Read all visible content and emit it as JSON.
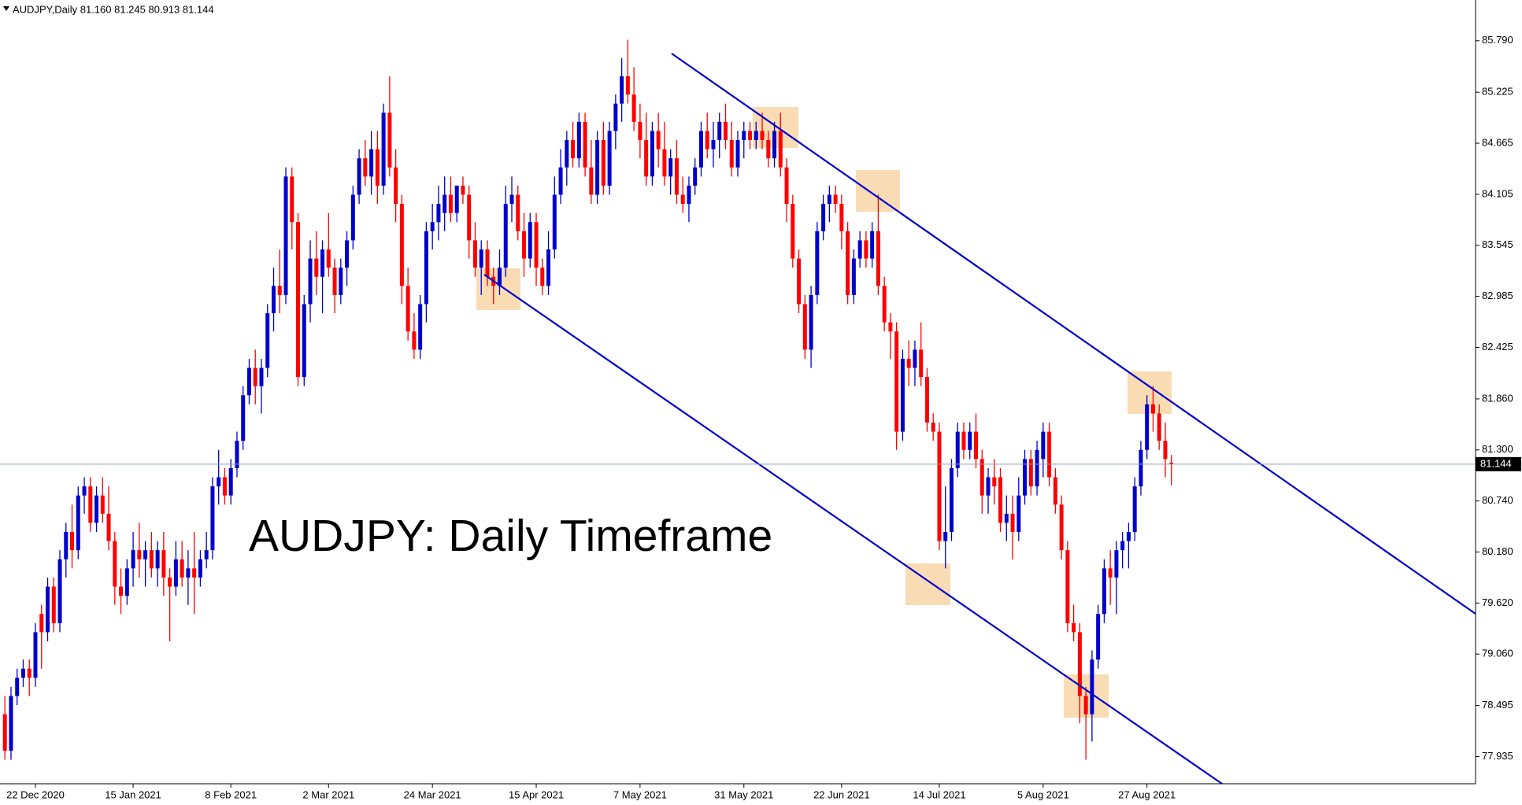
{
  "chart_data": {
    "type": "candlestick",
    "header": "AUDJPY,Daily  81.160 81.245 80.913 81.144",
    "title": "AUDJPY: Daily Timeframe",
    "up_color": "#0000cd",
    "down_color": "#ff0000",
    "last_price": 81.144,
    "xlim": [
      -0.8,
      240.8
    ],
    "ylim": [
      77.637,
      86.237
    ],
    "yticks": [
      {
        "value": 85.79,
        "label": "85.790"
      },
      85.225,
      84.665,
      84.105,
      83.545,
      82.985,
      82.425,
      {
        "value": 81.86,
        "label": "81.860"
      },
      {
        "value": 81.3,
        "label": "81.300"
      },
      {
        "value": 80.74,
        "label": "80.740"
      },
      {
        "value": 80.18,
        "label": "80.180"
      },
      {
        "value": 79.62,
        "label": "79.620"
      },
      {
        "value": 79.06,
        "label": "79.060"
      },
      78.495,
      77.935
    ],
    "xticks": [
      {
        "value": 5,
        "label": "22 Dec 2020"
      },
      {
        "value": 21,
        "label": "15 Jan 2021"
      },
      {
        "value": 37,
        "label": "8 Feb 2021"
      },
      {
        "value": 53,
        "label": "2 Mar 2021"
      },
      {
        "value": 70,
        "label": "24 Mar 2021"
      },
      {
        "value": 87,
        "label": "15 Apr 2021"
      },
      {
        "value": 104,
        "label": "7 May 2021"
      },
      {
        "value": 121,
        "label": "31 May 2021"
      },
      {
        "value": 137,
        "label": "22 Jun 2021"
      },
      {
        "value": 153,
        "label": "14 Jul 2021"
      },
      {
        "value": 170,
        "label": "5 Aug 2021"
      },
      {
        "value": 187,
        "label": "27 Aug 2021"
      }
    ],
    "ohlc": [
      [
        78.4,
        78.6,
        77.9,
        78.0
      ],
      [
        78.0,
        78.7,
        77.9,
        78.6
      ],
      [
        78.6,
        78.9,
        78.5,
        78.8
      ],
      [
        78.8,
        79.0,
        78.7,
        78.9
      ],
      [
        78.9,
        79.0,
        78.6,
        78.8
      ],
      [
        78.8,
        79.4,
        78.7,
        79.3
      ],
      [
        79.5,
        79.6,
        78.9,
        79.3
      ],
      [
        79.3,
        79.9,
        79.2,
        79.8
      ],
      [
        79.8,
        79.9,
        79.3,
        79.4
      ],
      [
        79.4,
        80.2,
        79.3,
        80.1
      ],
      [
        80.1,
        80.5,
        79.9,
        80.4
      ],
      [
        80.4,
        80.7,
        80.0,
        80.2
      ],
      [
        80.2,
        80.9,
        80.1,
        80.8
      ],
      [
        80.8,
        81.0,
        80.6,
        80.9
      ],
      [
        80.9,
        81.0,
        80.4,
        80.5
      ],
      [
        80.5,
        80.9,
        80.4,
        80.8
      ],
      [
        80.8,
        81.0,
        80.5,
        80.6
      ],
      [
        80.6,
        80.9,
        80.2,
        80.3
      ],
      [
        80.3,
        80.4,
        79.6,
        79.8
      ],
      [
        79.8,
        80.0,
        79.5,
        79.7
      ],
      [
        79.7,
        80.1,
        79.6,
        80.0
      ],
      [
        80.0,
        80.4,
        79.8,
        80.2
      ],
      [
        80.2,
        80.5,
        79.9,
        80.1
      ],
      [
        80.1,
        80.3,
        79.8,
        80.2
      ],
      [
        80.2,
        80.4,
        79.9,
        80.0
      ],
      [
        80.0,
        80.3,
        79.8,
        80.2
      ],
      [
        80.2,
        80.4,
        79.7,
        79.9
      ],
      [
        79.9,
        80.0,
        79.2,
        79.8
      ],
      [
        79.8,
        80.3,
        79.7,
        80.1
      ],
      [
        80.1,
        80.3,
        79.8,
        79.9
      ],
      [
        79.9,
        80.2,
        79.6,
        80.0
      ],
      [
        80.0,
        80.4,
        79.5,
        79.9
      ],
      [
        79.9,
        80.2,
        79.8,
        80.1
      ],
      [
        80.1,
        80.4,
        80.0,
        80.2
      ],
      [
        80.2,
        81.0,
        80.1,
        80.9
      ],
      [
        80.9,
        81.3,
        80.7,
        81.0
      ],
      [
        81.0,
        81.1,
        80.7,
        80.8
      ],
      [
        80.8,
        81.2,
        80.7,
        81.1
      ],
      [
        81.1,
        81.5,
        81.0,
        81.4
      ],
      [
        81.4,
        82.0,
        81.3,
        81.9
      ],
      [
        81.9,
        82.3,
        81.8,
        82.2
      ],
      [
        82.2,
        82.4,
        81.8,
        82.0
      ],
      [
        82.0,
        82.3,
        81.7,
        82.2
      ],
      [
        82.2,
        82.9,
        82.1,
        82.8
      ],
      [
        82.8,
        83.3,
        82.6,
        83.1
      ],
      [
        83.1,
        83.5,
        82.8,
        83.0
      ],
      [
        83.0,
        84.4,
        82.9,
        84.3
      ],
      [
        84.3,
        84.4,
        83.5,
        83.8
      ],
      [
        83.8,
        83.9,
        82.0,
        82.1
      ],
      [
        82.1,
        83.0,
        82.0,
        82.9
      ],
      [
        82.9,
        83.6,
        82.7,
        83.4
      ],
      [
        83.4,
        83.7,
        83.0,
        83.2
      ],
      [
        83.2,
        83.6,
        82.8,
        83.5
      ],
      [
        83.5,
        83.9,
        83.2,
        83.3
      ],
      [
        83.3,
        83.4,
        82.8,
        83.0
      ],
      [
        83.0,
        83.4,
        82.9,
        83.3
      ],
      [
        83.3,
        83.7,
        83.1,
        83.6
      ],
      [
        83.6,
        84.2,
        83.5,
        84.1
      ],
      [
        84.1,
        84.6,
        84.0,
        84.5
      ],
      [
        84.5,
        84.7,
        84.2,
        84.3
      ],
      [
        84.3,
        84.8,
        84.1,
        84.6
      ],
      [
        84.6,
        84.8,
        84.0,
        84.2
      ],
      [
        84.2,
        85.1,
        84.1,
        85.0
      ],
      [
        85.0,
        85.4,
        84.3,
        84.4
      ],
      [
        84.4,
        84.6,
        83.8,
        84.0
      ],
      [
        84.0,
        84.1,
        82.9,
        83.1
      ],
      [
        83.1,
        83.3,
        82.5,
        82.6
      ],
      [
        82.6,
        82.8,
        82.3,
        82.4
      ],
      [
        82.4,
        83.0,
        82.3,
        82.9
      ],
      [
        82.9,
        83.8,
        82.7,
        83.7
      ],
      [
        83.7,
        84.0,
        83.5,
        83.8
      ],
      [
        83.8,
        84.2,
        83.6,
        84.0
      ],
      [
        83.9,
        84.3,
        83.7,
        84.1
      ],
      [
        84.1,
        84.3,
        83.8,
        83.9
      ],
      [
        83.9,
        84.2,
        83.8,
        84.2
      ],
      [
        84.2,
        84.3,
        84.0,
        84.1
      ],
      [
        84.1,
        84.2,
        83.4,
        83.6
      ],
      [
        83.6,
        83.8,
        83.2,
        83.3
      ],
      [
        83.3,
        83.6,
        83.0,
        83.5
      ],
      [
        83.5,
        83.6,
        83.1,
        83.2
      ],
      [
        83.2,
        83.3,
        82.9,
        83.1
      ],
      [
        83.1,
        83.5,
        83.0,
        83.3
      ],
      [
        83.3,
        84.2,
        83.2,
        84.0
      ],
      [
        84.0,
        84.3,
        83.8,
        84.1
      ],
      [
        84.1,
        84.2,
        83.6,
        83.7
      ],
      [
        83.7,
        83.9,
        83.2,
        83.4
      ],
      [
        83.4,
        83.9,
        83.3,
        83.8
      ],
      [
        83.8,
        83.9,
        83.1,
        83.3
      ],
      [
        83.3,
        83.4,
        83.0,
        83.1
      ],
      [
        83.1,
        83.7,
        83.0,
        83.5
      ],
      [
        83.5,
        84.3,
        83.4,
        84.1
      ],
      [
        84.1,
        84.6,
        84.0,
        84.4
      ],
      [
        84.4,
        84.8,
        84.2,
        84.7
      ],
      [
        84.7,
        84.9,
        84.4,
        84.5
      ],
      [
        84.5,
        85.0,
        84.4,
        84.9
      ],
      [
        84.9,
        85.0,
        84.3,
        84.4
      ],
      [
        84.4,
        84.7,
        84.0,
        84.1
      ],
      [
        84.1,
        84.8,
        84.0,
        84.7
      ],
      [
        84.7,
        84.9,
        84.1,
        84.2
      ],
      [
        84.2,
        84.9,
        84.1,
        84.8
      ],
      [
        84.8,
        85.2,
        84.6,
        85.1
      ],
      [
        85.1,
        85.6,
        84.9,
        85.4
      ],
      [
        85.4,
        85.8,
        85.1,
        85.2
      ],
      [
        85.2,
        85.5,
        84.8,
        84.9
      ],
      [
        84.9,
        85.1,
        84.5,
        84.7
      ],
      [
        84.7,
        85.0,
        84.2,
        84.3
      ],
      [
        84.3,
        84.9,
        84.2,
        84.8
      ],
      [
        84.8,
        85.0,
        84.4,
        84.6
      ],
      [
        84.6,
        84.9,
        84.2,
        84.3
      ],
      [
        84.3,
        84.6,
        84.1,
        84.5
      ],
      [
        84.5,
        84.7,
        84.0,
        84.1
      ],
      [
        84.1,
        84.3,
        83.9,
        84.0
      ],
      [
        84.0,
        84.3,
        83.8,
        84.2
      ],
      [
        84.2,
        84.5,
        84.1,
        84.4
      ],
      [
        84.4,
        84.9,
        84.3,
        84.8
      ],
      [
        84.8,
        85.0,
        84.5,
        84.6
      ],
      [
        84.6,
        84.9,
        84.4,
        84.7
      ],
      [
        84.7,
        85.0,
        84.5,
        84.9
      ],
      [
        84.9,
        85.1,
        84.6,
        84.7
      ],
      [
        84.7,
        84.9,
        84.3,
        84.4
      ],
      [
        84.4,
        84.8,
        84.3,
        84.7
      ],
      [
        84.7,
        84.9,
        84.5,
        84.8
      ],
      [
        84.8,
        84.9,
        84.6,
        84.7
      ],
      [
        84.7,
        84.9,
        84.6,
        84.8
      ],
      [
        84.8,
        85.0,
        84.6,
        84.7
      ],
      [
        84.7,
        84.8,
        84.4,
        84.5
      ],
      [
        84.5,
        84.9,
        84.4,
        84.8
      ],
      [
        84.8,
        85.0,
        84.3,
        84.4
      ],
      [
        84.4,
        84.5,
        83.8,
        84.0
      ],
      [
        84.0,
        84.1,
        83.3,
        83.4
      ],
      [
        83.4,
        83.5,
        82.8,
        82.9
      ],
      [
        82.9,
        83.0,
        82.3,
        82.4
      ],
      [
        82.4,
        83.1,
        82.2,
        83.0
      ],
      [
        83.0,
        83.8,
        82.9,
        83.7
      ],
      [
        83.7,
        84.1,
        83.6,
        84.0
      ],
      [
        84.0,
        84.2,
        83.8,
        84.1
      ],
      [
        84.1,
        84.2,
        83.9,
        84.0
      ],
      [
        84.0,
        84.1,
        83.5,
        83.7
      ],
      [
        83.7,
        83.8,
        82.9,
        83.0
      ],
      [
        83.0,
        83.5,
        82.9,
        83.4
      ],
      [
        83.4,
        83.7,
        83.3,
        83.6
      ],
      [
        83.6,
        83.7,
        83.3,
        83.4
      ],
      [
        83.4,
        83.8,
        83.3,
        83.7
      ],
      [
        83.7,
        84.1,
        83.0,
        83.1
      ],
      [
        83.1,
        83.2,
        82.6,
        82.7
      ],
      [
        82.7,
        82.8,
        82.3,
        82.6
      ],
      [
        82.6,
        82.7,
        81.3,
        81.5
      ],
      [
        81.5,
        82.4,
        81.4,
        82.3
      ],
      [
        82.3,
        82.5,
        82.0,
        82.2
      ],
      [
        82.2,
        82.5,
        82.0,
        82.4
      ],
      [
        82.4,
        82.7,
        82.0,
        82.1
      ],
      [
        82.1,
        82.2,
        81.5,
        81.6
      ],
      [
        81.6,
        81.7,
        81.4,
        81.5
      ],
      [
        81.5,
        81.6,
        80.2,
        80.3
      ],
      [
        80.3,
        80.9,
        80.0,
        80.4
      ],
      [
        80.4,
        81.2,
        80.3,
        81.1
      ],
      [
        81.1,
        81.6,
        81.0,
        81.5
      ],
      [
        81.5,
        81.6,
        81.2,
        81.3
      ],
      [
        81.3,
        81.6,
        81.2,
        81.5
      ],
      [
        81.5,
        81.7,
        81.1,
        81.2
      ],
      [
        81.2,
        81.3,
        80.6,
        80.8
      ],
      [
        80.8,
        81.1,
        80.6,
        81.0
      ],
      [
        81.0,
        81.2,
        80.7,
        80.9
      ],
      [
        81.0,
        81.1,
        80.4,
        80.5
      ],
      [
        80.5,
        80.8,
        80.3,
        80.6
      ],
      [
        80.6,
        80.8,
        80.1,
        80.4
      ],
      [
        80.4,
        81.0,
        80.3,
        80.8
      ],
      [
        80.8,
        81.3,
        80.7,
        81.2
      ],
      [
        81.2,
        81.3,
        80.8,
        80.9
      ],
      [
        80.9,
        81.4,
        80.8,
        81.3
      ],
      [
        81.2,
        81.6,
        81.0,
        81.5
      ],
      [
        81.5,
        81.6,
        80.9,
        81.0
      ],
      [
        81.0,
        81.1,
        80.6,
        80.7
      ],
      [
        80.7,
        80.8,
        80.1,
        80.2
      ],
      [
        80.2,
        80.3,
        79.3,
        79.4
      ],
      [
        79.4,
        79.6,
        79.2,
        79.3
      ],
      [
        79.3,
        79.4,
        78.3,
        78.6
      ],
      [
        78.6,
        78.7,
        77.9,
        78.4
      ],
      [
        78.4,
        79.1,
        78.1,
        79.0
      ],
      [
        79.0,
        79.6,
        78.9,
        79.5
      ],
      [
        79.5,
        80.1,
        79.4,
        80.0
      ],
      [
        80.0,
        80.2,
        79.6,
        79.9
      ],
      [
        79.9,
        80.3,
        79.5,
        80.2
      ],
      [
        80.2,
        80.4,
        80.0,
        80.3
      ],
      [
        80.3,
        80.5,
        80.0,
        80.4
      ],
      [
        80.4,
        81.0,
        80.3,
        80.9
      ],
      [
        80.9,
        81.4,
        80.8,
        81.3
      ],
      [
        81.3,
        81.9,
        81.2,
        81.8
      ],
      [
        81.8,
        82.0,
        81.5,
        81.7
      ],
      [
        81.7,
        81.8,
        81.3,
        81.4
      ],
      [
        81.4,
        81.6,
        81.0,
        81.2
      ],
      [
        81.16,
        81.245,
        80.913,
        81.144
      ]
    ]
  }
}
